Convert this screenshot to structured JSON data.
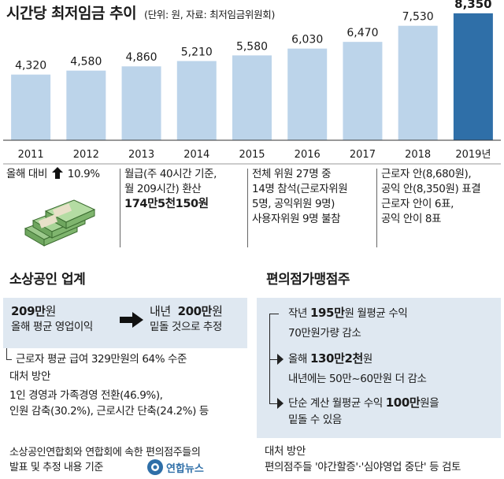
{
  "header": {
    "title": "시간당 최저임금 추이",
    "subtitle": "(단위: 원, 자료: 최저임금위원회)"
  },
  "chart_data": {
    "type": "bar",
    "title": "시간당 최저임금 추이",
    "categories": [
      "2011",
      "2012",
      "2013",
      "2014",
      "2015",
      "2016",
      "2017",
      "2018",
      "2019년"
    ],
    "values": [
      4320,
      4580,
      4860,
      5210,
      5580,
      6030,
      6470,
      7530,
      8350
    ],
    "value_labels": [
      "4,320",
      "4,580",
      "4,860",
      "5,210",
      "5,580",
      "6,030",
      "6,470",
      "7,530",
      "8,350"
    ],
    "highlight_index": 8,
    "colors": {
      "bar": "#bcd4ea",
      "highlight": "#2f6fa8",
      "axis": "#333333"
    },
    "ylim": [
      0,
      8500
    ],
    "grid": false
  },
  "info": {
    "col1": {
      "label": "올해 대비",
      "arrow_icon": "up-arrow-icon",
      "value": "10.9%",
      "image_icon": "money-stack-icon"
    },
    "col2": {
      "line1": "월급(주 40시간 기준,",
      "line2": "월 209시간) 환산",
      "line3": "174만5천150원"
    },
    "col3": {
      "line1": "전체 위원 27명 중",
      "line2": "14명 참석(근로자위원",
      "line3": "5명, 공익위원 9명)",
      "line4": "사용자위원 9명 불참"
    },
    "col4": {
      "line1": "근로자 안(8,680원),",
      "line2": "공익 안(8,350원) 표결",
      "line3": "근로자 안이 6표,",
      "line4": "공익 안이 8표"
    }
  },
  "left_section": {
    "title": "소상공인 업계",
    "box": {
      "current_amount": "209만",
      "current_unit": "원",
      "current_label": "올해 평균 영업이익",
      "next_prefix": "내년",
      "next_amount": "200만",
      "next_unit": "원",
      "next_label": "밑돌 것으로 추정"
    },
    "line1": "근로자 평균 급여 329만원의 64% 수준",
    "countermeasure_title": "대처 방안",
    "countermeasure1": "1인 경영과 가족경영 전환(46.9%),",
    "countermeasure2": "인원 감축(30.2%), 근로시간 단축(24.2%) 등",
    "source1": "소상공인연합회와 연합회에 속한 편의점주들의",
    "source2": "발표 및 추정 내용 기준"
  },
  "right_section": {
    "title": "편의점가맹점주",
    "item1_prefix": "작년",
    "item1_amount": "195만",
    "item1_suffix": "원 월평균 수익",
    "item1_sub": "70만원가량 감소",
    "item2_prefix": "올해",
    "item2_amount": "130만2천",
    "item2_suffix": "원",
    "item2_sub": "내년에는 50만~60만원 더 감소",
    "item3_prefix": "단순 계산 월평균 수익",
    "item3_amount": "100만",
    "item3_suffix": "원을",
    "item3_sub": "밑돌 수 있음",
    "countermeasure_title": "대처 방안",
    "countermeasure": "편의점주들 '야간할증'·'심야영업 중단' 등 검토"
  },
  "logo": {
    "text": "연합뉴스"
  }
}
